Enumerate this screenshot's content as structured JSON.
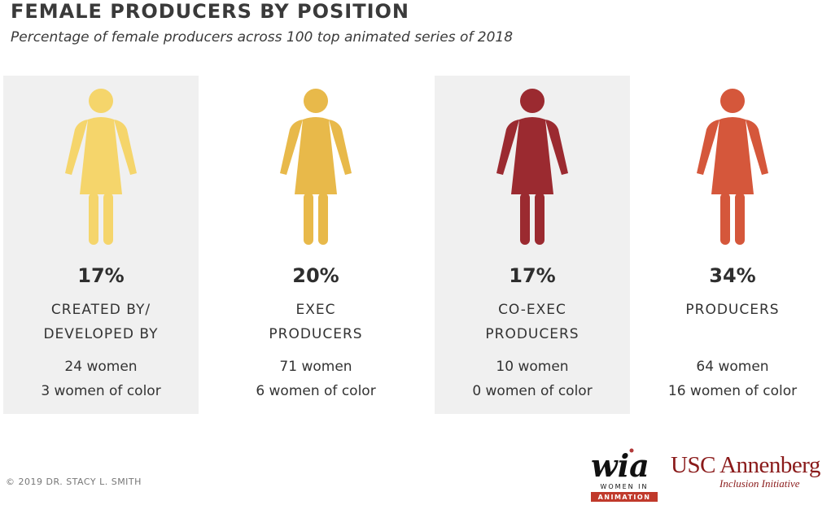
{
  "header": {
    "title": "FEMALE PRODUCERS BY POSITION",
    "subtitle": "Percentage of female producers across 100 top animated series of 2018"
  },
  "chart_data": {
    "type": "bar",
    "categories": [
      "CREATED BY/ DEVELOPED BY",
      "EXEC PRODUCERS",
      "CO-EXEC PRODUCERS",
      "PRODUCERS"
    ],
    "values": [
      17,
      20,
      17,
      34
    ],
    "unit": "%",
    "panels": [
      {
        "percent": "17%",
        "label_lines": [
          "CREATED BY/",
          "DEVELOPED BY"
        ],
        "women": "24 women",
        "women_of_color": "3 women of color",
        "color": "#f5d56b",
        "shaded": true
      },
      {
        "percent": "20%",
        "label_lines": [
          "EXEC",
          "PRODUCERS"
        ],
        "women": "71 women",
        "women_of_color": "6 women of color",
        "color": "#e8b94a",
        "shaded": false
      },
      {
        "percent": "17%",
        "label_lines": [
          "CO-EXEC",
          "PRODUCERS"
        ],
        "women": "10 women",
        "women_of_color": "0 women of color",
        "color": "#9b2a30",
        "shaded": true
      },
      {
        "percent": "34%",
        "label_lines": [
          "PRODUCERS"
        ],
        "women": "64 women",
        "women_of_color": "16 women of color",
        "color": "#d5573b",
        "shaded": false
      }
    ]
  },
  "footer": {
    "copyright": "© 2019 DR. STACY L. SMITH",
    "wia_logo": {
      "mark": "wia",
      "line1": "WOMEN IN",
      "line2": "ANIMATION"
    },
    "usc_logo": {
      "name": "USC Annenberg",
      "sub": "Inclusion Initiative"
    }
  }
}
